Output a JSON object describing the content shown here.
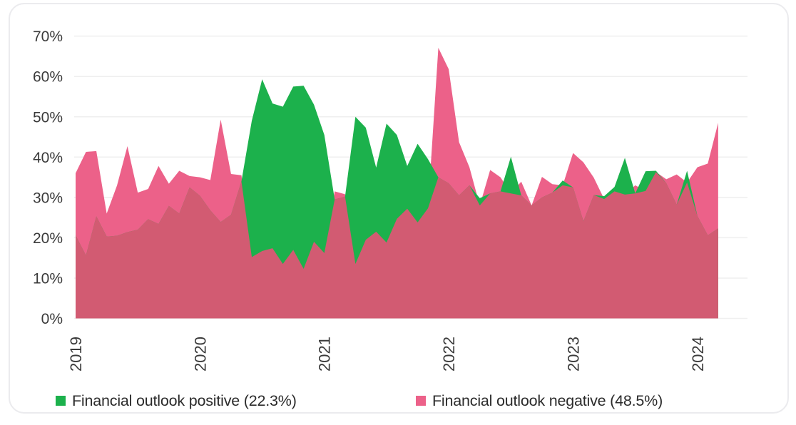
{
  "chart_data": {
    "type": "area",
    "title": "",
    "x_start": "2019-01",
    "x_end": "2024-03",
    "interval": "monthly",
    "x_tick_labels": [
      "2019",
      "2020",
      "2021",
      "2022",
      "2023",
      "2024"
    ],
    "x_tick_month_index": [
      0,
      12,
      24,
      36,
      48,
      60
    ],
    "y_tick_labels": [
      "0%",
      "10%",
      "20%",
      "30%",
      "40%",
      "50%",
      "60%",
      "70%"
    ],
    "ylim": [
      0,
      70
    ],
    "grid": true,
    "legend_position": "bottom",
    "overlap_color": "#d25b72",
    "series": [
      {
        "name": "Financial outlook positive (22.3%)",
        "color": "#1cb14c",
        "latest_value": 22.3,
        "values": [
          20.6,
          15.6,
          25.3,
          20.3,
          20.5,
          21.4,
          22,
          24.6,
          23.4,
          27.9,
          26,
          32.5,
          30.4,
          26.8,
          23.9,
          25.7,
          34,
          49,
          59.3,
          53.3,
          52.5,
          57.5,
          57.7,
          53,
          45.5,
          29.5,
          30.2,
          50,
          47.3,
          37.4,
          48.3,
          45.5,
          37.8,
          43.3,
          39.5,
          35,
          33.5,
          30.5,
          33,
          29.8,
          31,
          31.5,
          40.1,
          30.5,
          28,
          30,
          31.2,
          34.2,
          32.5,
          24.1,
          30.6,
          30.3,
          32.6,
          39.8,
          31,
          36.5,
          36.6,
          33.5,
          28.2,
          36.6,
          25.4,
          20.6,
          22.3
        ]
      },
      {
        "name": "Financial outlook negative (48.5%)",
        "color": "#ec6189",
        "latest_value": 48.5,
        "values": [
          36,
          41.3,
          41.5,
          26,
          33,
          42.7,
          31.2,
          32.1,
          37.8,
          33.4,
          36.6,
          35.3,
          35,
          34.3,
          49.3,
          35.8,
          35.5,
          15.2,
          16.7,
          17.4,
          13.5,
          17,
          12.3,
          19,
          16.2,
          31.5,
          30.8,
          13.5,
          19.5,
          21.5,
          18.8,
          24.7,
          27.2,
          23.8,
          27.3,
          67.1,
          61.8,
          43.7,
          37.5,
          28,
          36.8,
          35,
          31,
          33.9,
          28,
          35.1,
          33.3,
          33,
          41,
          38.7,
          34.9,
          29.6,
          31.5,
          30.7,
          33,
          31.6,
          36.3,
          34.5,
          35.7,
          33.7,
          37.5,
          38.4,
          48.5
        ]
      }
    ],
    "axis_text_color": "#3a3a3a",
    "gridline_color": "#efefef"
  }
}
